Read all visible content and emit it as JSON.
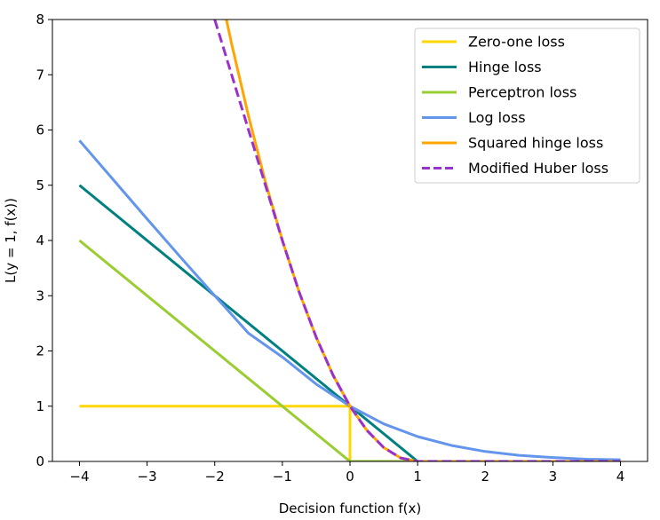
{
  "chart_data": {
    "type": "line",
    "title": "",
    "xlabel": "Decision function f(x)",
    "ylabel": "L(y = 1, f(x))",
    "xlim": [
      -4.4,
      4.4
    ],
    "ylim": [
      0,
      8
    ],
    "xticks": [
      -4,
      -3,
      -2,
      -1,
      0,
      1,
      2,
      3,
      4
    ],
    "yticks": [
      0,
      1,
      2,
      3,
      4,
      5,
      6,
      7,
      8
    ],
    "x_tick_labels": [
      "−4",
      "−3",
      "−2",
      "−1",
      "0",
      "1",
      "2",
      "3",
      "4"
    ],
    "y_tick_labels": [
      "0",
      "1",
      "2",
      "3",
      "4",
      "5",
      "6",
      "7",
      "8"
    ],
    "grid": false,
    "legend_position": "top-right",
    "series": [
      {
        "name": "Zero-one loss",
        "color": "#ffd700",
        "dash": "solid",
        "x": [
          -4,
          0,
          0,
          4
        ],
        "y": [
          1,
          1,
          0,
          0
        ]
      },
      {
        "name": "Hinge loss",
        "color": "#008080",
        "dash": "solid",
        "x": [
          -4,
          1,
          4
        ],
        "y": [
          5,
          0,
          0
        ]
      },
      {
        "name": "Perceptron loss",
        "color": "#9acd32",
        "dash": "solid",
        "x": [
          -4,
          0,
          4
        ],
        "y": [
          4,
          0,
          0
        ]
      },
      {
        "name": "Log loss",
        "color": "#6495ed",
        "dash": "solid",
        "x": [
          -4,
          -3.5,
          -3,
          -2.5,
          -2,
          -1.5,
          -1,
          -0.5,
          0,
          0.5,
          1,
          1.5,
          2,
          2.5,
          3,
          3.5,
          4
        ],
        "y": [
          5.81,
          5.1,
          4.39,
          3.69,
          3.0,
          2.32,
          1.89,
          1.4,
          1.0,
          0.68,
          0.45,
          0.29,
          0.18,
          0.11,
          0.07,
          0.04,
          0.03
        ]
      },
      {
        "name": "Squared hinge loss",
        "color": "#ffa500",
        "dash": "solid",
        "x": [
          -1.828,
          -1.75,
          -1.5,
          -1.25,
          -1,
          -0.75,
          -0.5,
          -0.25,
          0,
          0.25,
          0.5,
          0.75,
          1,
          2,
          3,
          4
        ],
        "y": [
          8.0,
          7.56,
          6.25,
          5.06,
          4.0,
          3.06,
          2.25,
          1.56,
          1.0,
          0.5625,
          0.25,
          0.0625,
          0,
          0,
          0,
          0
        ]
      },
      {
        "name": "Modified Huber loss",
        "color": "#9932cc",
        "dash": "dashed",
        "x": [
          -2.0,
          -1.75,
          -1.5,
          -1.25,
          -1,
          -0.75,
          -0.5,
          -0.25,
          0,
          0.25,
          0.5,
          0.75,
          1,
          2,
          3,
          4
        ],
        "y": [
          8.0,
          7.0,
          6.0,
          5.0,
          4.0,
          3.06,
          2.25,
          1.56,
          1.0,
          0.5625,
          0.25,
          0.0625,
          0,
          0,
          0,
          0
        ]
      }
    ]
  }
}
